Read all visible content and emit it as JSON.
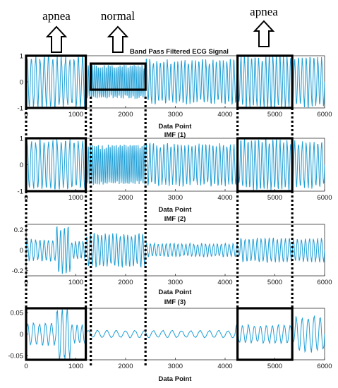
{
  "figure": {
    "annotations": [
      "apnea",
      "normal",
      "apnea"
    ]
  },
  "chart_data": [
    {
      "type": "line",
      "title": "Band Pass Filtered ECG Signal",
      "xlabel": "Data Point",
      "ylabel": "",
      "xlim": [
        0,
        6000
      ],
      "ylim": [
        -1,
        1
      ],
      "xticks": [
        "0",
        "1000",
        "2000",
        "3000",
        "4000",
        "5000",
        "6000"
      ],
      "yticks": [
        "1",
        "0",
        "-1"
      ],
      "series": [
        {
          "color": "#1f9fd6",
          "segments": [
            {
              "x": [
                0,
                1200
              ],
              "oscillations": 14,
              "amplitude": 0.95
            },
            {
              "x": [
                1200,
                2400
              ],
              "oscillations": 30,
              "amplitude": 0.6
            },
            {
              "x": [
                2400,
                4300
              ],
              "oscillations": 27,
              "amplitude": 0.8
            },
            {
              "x": [
                4300,
                5300
              ],
              "oscillations": 14,
              "amplitude": 0.95
            },
            {
              "x": [
                5300,
                6000
              ],
              "oscillations": 9,
              "amplitude": 0.9
            }
          ]
        }
      ],
      "highlight_boxes": [
        {
          "x": [
            0,
            1200
          ],
          "y": [
            -1,
            1
          ]
        },
        {
          "x": [
            1300,
            2400
          ],
          "y": [
            -0.3,
            0.7
          ]
        },
        {
          "x": [
            4250,
            5350
          ],
          "y": [
            -1,
            1
          ]
        }
      ]
    },
    {
      "type": "line",
      "title": "IMF (1)",
      "xlabel": "Data Point",
      "ylabel": "",
      "xlim": [
        0,
        6000
      ],
      "ylim": [
        -1,
        1
      ],
      "xticks": [
        "0",
        "1000",
        "2000",
        "3000",
        "4000",
        "5000",
        "6000"
      ],
      "yticks": [
        "1",
        "0",
        "-1"
      ],
      "series": [
        {
          "color": "#1f9fd6",
          "segments": [
            {
              "x": [
                0,
                1200
              ],
              "oscillations": 14,
              "amplitude": 0.9
            },
            {
              "x": [
                1200,
                2400
              ],
              "oscillations": 30,
              "amplitude": 0.7
            },
            {
              "x": [
                2400,
                4300
              ],
              "oscillations": 27,
              "amplitude": 0.75
            },
            {
              "x": [
                4300,
                5300
              ],
              "oscillations": 14,
              "amplitude": 0.9
            },
            {
              "x": [
                5300,
                6000
              ],
              "oscillations": 9,
              "amplitude": 0.85
            }
          ]
        }
      ],
      "highlight_boxes": [
        {
          "x": [
            0,
            1200
          ],
          "y": [
            -1,
            1
          ]
        },
        {
          "x": [
            4250,
            5350
          ],
          "y": [
            -1,
            1
          ]
        }
      ]
    },
    {
      "type": "line",
      "title": "IMF (2)",
      "xlabel": "Data Point",
      "ylabel": "",
      "xlim": [
        0,
        6000
      ],
      "ylim": [
        -0.25,
        0.25
      ],
      "xticks": [
        "0",
        "1000",
        "2000",
        "3000",
        "4000",
        "5000",
        "6000"
      ],
      "yticks": [
        "0.2",
        "0",
        "-0.2"
      ],
      "series": [
        {
          "color": "#1f9fd6",
          "segments": [
            {
              "x": [
                0,
                600
              ],
              "oscillations": 7,
              "amplitude": 0.1
            },
            {
              "x": [
                600,
                900
              ],
              "oscillations": 4,
              "amplitude": 0.22
            },
            {
              "x": [
                900,
                1200
              ],
              "oscillations": 4,
              "amplitude": 0.08
            },
            {
              "x": [
                1200,
                2400
              ],
              "oscillations": 16,
              "amplitude": 0.15
            },
            {
              "x": [
                2400,
                4300
              ],
              "oscillations": 24,
              "amplitude": 0.06
            },
            {
              "x": [
                4300,
                6000
              ],
              "oscillations": 21,
              "amplitude": 0.11
            }
          ]
        }
      ],
      "highlight_boxes": []
    },
    {
      "type": "line",
      "title": "IMF (3)",
      "xlabel": "Data Point",
      "ylabel": "",
      "xlim": [
        0,
        6000
      ],
      "ylim": [
        -0.06,
        0.06
      ],
      "xticks": [
        "0",
        "1000",
        "2000",
        "3000",
        "4000",
        "5000",
        "6000"
      ],
      "yticks": [
        "0.05",
        "0",
        "-0.05"
      ],
      "series": [
        {
          "color": "#1f9fd6",
          "segments": [
            {
              "x": [
                0,
                600
              ],
              "oscillations": 5,
              "amplitude": 0.025
            },
            {
              "x": [
                600,
                900
              ],
              "oscillations": 3,
              "amplitude": 0.058
            },
            {
              "x": [
                900,
                1200
              ],
              "oscillations": 3,
              "amplitude": 0.02
            },
            {
              "x": [
                1200,
                4200
              ],
              "oscillations": 16,
              "amplitude": 0.008
            },
            {
              "x": [
                4200,
                5400
              ],
              "oscillations": 10,
              "amplitude": 0.02
            },
            {
              "x": [
                5400,
                6000
              ],
              "oscillations": 5,
              "amplitude": 0.04
            }
          ]
        }
      ],
      "highlight_boxes": [
        {
          "x": [
            0,
            1200
          ],
          "y": [
            -0.06,
            0.06
          ]
        },
        {
          "x": [
            4250,
            5350
          ],
          "y": [
            -0.06,
            0.06
          ]
        }
      ]
    }
  ]
}
